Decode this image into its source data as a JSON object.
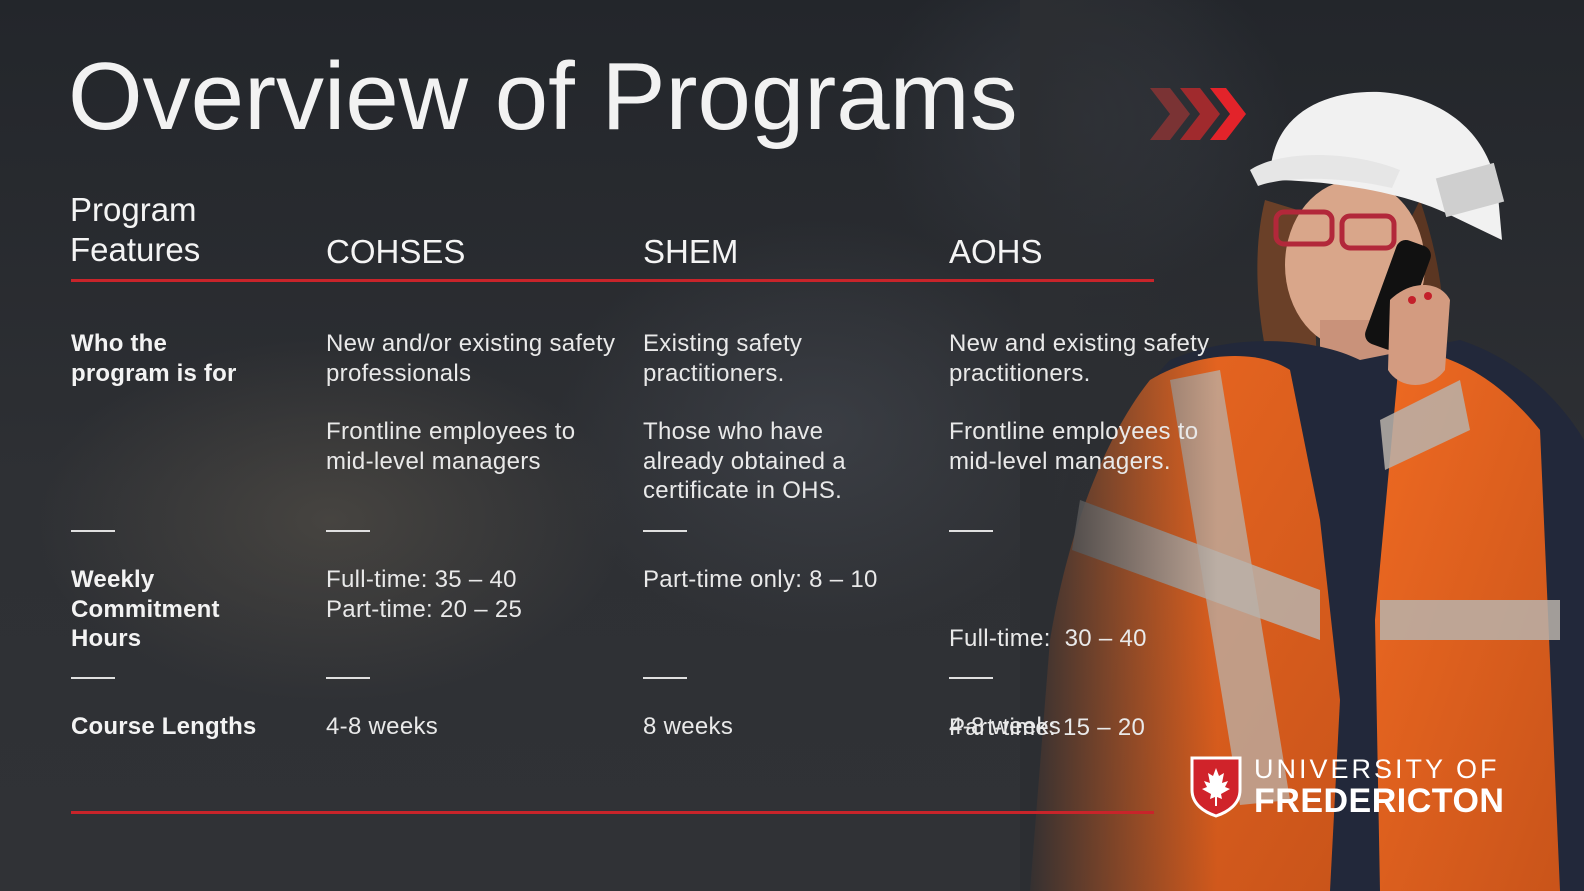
{
  "title": "Overview of Programs",
  "colors": {
    "accent_red": "#c8242a",
    "text": "#f1f1f1",
    "vest_orange": "#e8611c"
  },
  "headers": {
    "features": "Program Features",
    "col1": "COHSES",
    "col2": "SHEM",
    "col3": "AOHS"
  },
  "rows": {
    "who": {
      "label": "Who the program is for",
      "col1": [
        "New and/or existing safety professionals",
        "Frontline employees to mid-level managers"
      ],
      "col2": [
        "Existing safety practitioners.",
        "Those who have already obtained a certificate in OHS."
      ],
      "col3": [
        "New and existing safety practitioners.",
        "Frontline employees to mid-level managers."
      ]
    },
    "hours": {
      "label": "Weekly Commitment Hours",
      "col1": [
        "Full-time: 35 – 40",
        "Part-time: 20 – 25"
      ],
      "col2": [
        "Part-time only: 8 – 10"
      ],
      "col3": [
        "Full-time:  30 – 40",
        "Part-time: 15 – 20"
      ]
    },
    "length": {
      "label": "Course Lengths",
      "col1": "4-8 weeks",
      "col2": "8 weeks",
      "col3": "4-8 weeks"
    }
  },
  "logo": {
    "line1": "UNIVERSITY OF",
    "line2": "FREDERICTON",
    "icon": "maple-leaf-shield-icon"
  },
  "decor": {
    "chevrons_icon": "triple-chevron-right-icon",
    "photo": "woman-hard-hat-phone"
  }
}
